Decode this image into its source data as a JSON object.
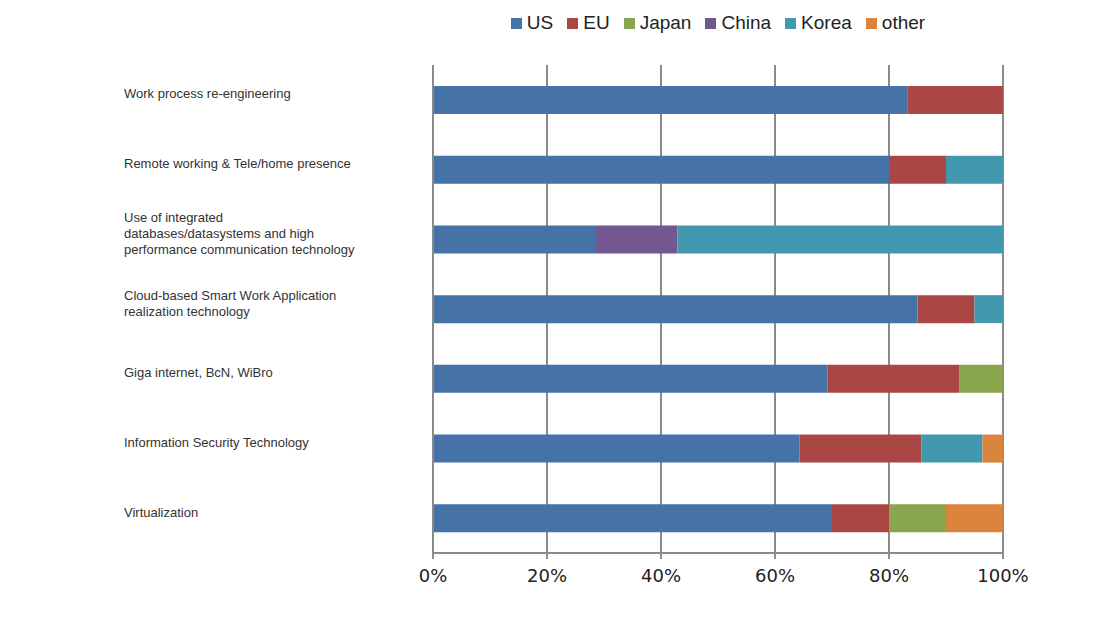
{
  "chart_data": {
    "type": "bar",
    "orientation": "horizontal",
    "stacked": true,
    "categories": [
      "Work process re-engineering",
      "Remote working & Tele/home presence",
      "Use of integrated databases/datasystems and high performance communication technology",
      "Cloud-based Smart Work Application realization technology",
      "Giga internet, BcN, WiBro",
      "Information Security Technology",
      "Virtualization"
    ],
    "series": [
      {
        "name": "US",
        "color": "#4572A7",
        "values": [
          83.3,
          80,
          28.6,
          85,
          69.2,
          64.3,
          70
        ]
      },
      {
        "name": "EU",
        "color": "#AA4643",
        "values": [
          16.7,
          10,
          0,
          10,
          23.1,
          21.4,
          10
        ]
      },
      {
        "name": "Japan",
        "color": "#89A54E",
        "values": [
          0,
          0,
          0,
          0,
          7.7,
          0,
          10
        ]
      },
      {
        "name": "China",
        "color": "#71588F",
        "values": [
          0,
          0,
          14.3,
          0,
          0,
          0,
          0
        ]
      },
      {
        "name": "Korea",
        "color": "#4198AF",
        "values": [
          0,
          10,
          57.1,
          5,
          0,
          10.7,
          0
        ]
      },
      {
        "name": "other",
        "color": "#DB843D",
        "values": [
          0,
          0,
          0,
          0,
          0,
          3.6,
          10
        ]
      }
    ],
    "xlim": [
      0,
      100
    ],
    "xticks": [
      {
        "value": 0,
        "label": "0%"
      },
      {
        "value": 20,
        "label": "20%"
      },
      {
        "value": 40,
        "label": "40%"
      },
      {
        "value": 60,
        "label": "60%"
      },
      {
        "value": 80,
        "label": "80%"
      },
      {
        "value": 100,
        "label": "100%"
      }
    ],
    "grid": true,
    "legend": "top"
  }
}
